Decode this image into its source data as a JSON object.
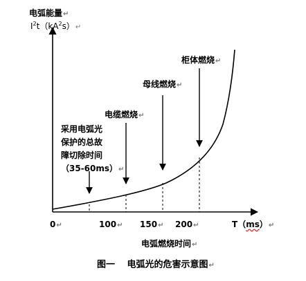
{
  "ylabel_line1": "电弧能量",
  "ylabel_i": "I",
  "ylabel_sup": "2",
  "ylabel_rest": "t（kA",
  "ylabel_sup2": "2",
  "ylabel_end": "s）",
  "return_mark": "↵",
  "annotations": {
    "cabinet": "柜体燃烧",
    "busbar": "母线燃烧",
    "cable": "电缆燃烧",
    "protection_lines": [
      "采用电弧光",
      "保护的总故",
      "障切除时间"
    ],
    "protection_time": "（35-60ms）"
  },
  "x_ticks": [
    "0",
    "100",
    "150",
    "200"
  ],
  "xaxis_t": "T（",
  "xaxis_unit": "ms",
  "xaxis_close": "）",
  "xlabel": "电弧燃烧时间",
  "caption": "图一　 电弧光的危害示意图"
}
